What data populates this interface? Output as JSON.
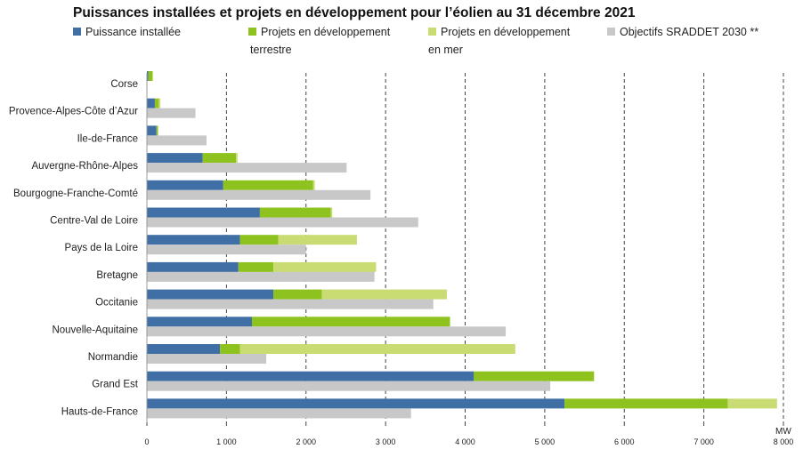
{
  "chart_data": {
    "type": "bar",
    "orientation": "horizontal",
    "stacked": true,
    "title": "Puissances installées et projets en développement pour l’éolien au 31 décembre 2021",
    "unit": "MW",
    "xlim": [
      0,
      8000
    ],
    "ticks": [
      0,
      1000,
      2000,
      3000,
      4000,
      5000,
      6000,
      7000,
      8000
    ],
    "tick_labels": [
      "0",
      "1 000",
      "2 000",
      "3 000",
      "4 000",
      "5 000",
      "6 000",
      "7 000",
      "8 000"
    ],
    "grid": "vertical dashed",
    "legend_position": "top",
    "categories": [
      "Corse",
      "Provence-Alpes-Côte d’Azur",
      "Ile-de-France",
      "Auvergne-Rhône-Alpes",
      "Bourgogne-Franche-Comté",
      "Centre-Val de Loire",
      "Pays de la Loire",
      "Bretagne",
      "Occitanie",
      "Nouvelle-Aquitaine",
      "Normandie",
      "Grand Est",
      "Hauts-de-France"
    ],
    "series": [
      {
        "name": "Puissance installée",
        "color": "#3f6fa5",
        "stack": "a",
        "values": [
          18,
          100,
          120,
          700,
          960,
          1420,
          1170,
          1150,
          1590,
          1320,
          920,
          4110,
          5250
        ]
      },
      {
        "name": "Projets en développement terrestre",
        "color": "#8dc21f",
        "stack": "a",
        "values": [
          50,
          50,
          20,
          420,
          1130,
          890,
          480,
          440,
          610,
          2490,
          250,
          1510,
          2050
        ]
      },
      {
        "name": "Projets en développement en mer",
        "color": "#c8dc73",
        "stack": "a",
        "values": [
          10,
          20,
          0,
          20,
          20,
          20,
          990,
          1290,
          1570,
          0,
          3460,
          0,
          620
        ]
      },
      {
        "name": "Objectifs SRADDET 2030 **",
        "color": "#c8c8c8",
        "stack": "b",
        "values": [
          0,
          610,
          750,
          2510,
          2810,
          3410,
          2000,
          2860,
          3600,
          4510,
          1500,
          5070,
          3320
        ]
      }
    ]
  }
}
